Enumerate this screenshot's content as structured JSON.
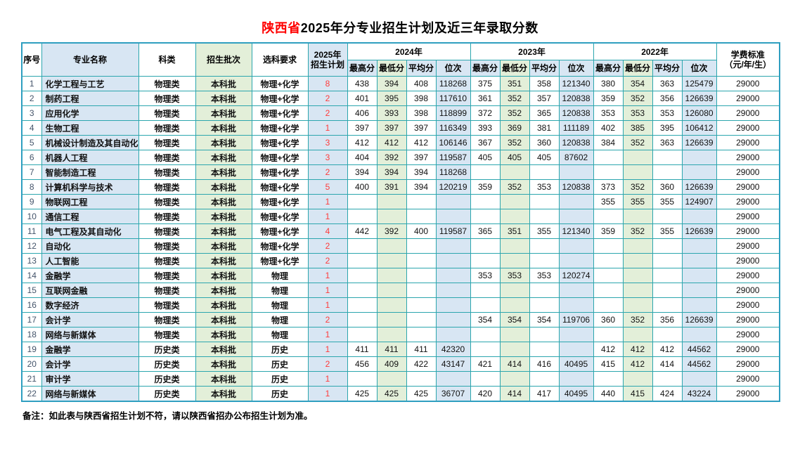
{
  "title": {
    "province": "陕西省",
    "rest": "2025年分专业招生计划及近三年录取分数"
  },
  "table": {
    "headers": {
      "no": "序号",
      "major": "专业名称",
      "kelei": "科类",
      "batch": "招生批次",
      "req": "选科要求",
      "plan_line1": "2025年",
      "plan_line2": "招生计划",
      "years": [
        "2024年",
        "2023年",
        "2022年"
      ],
      "score_cols": [
        "最高分",
        "最低分",
        "平均分",
        "位次"
      ],
      "tuition_line1": "学费标准",
      "tuition_line2": "（元/年/生）"
    },
    "rows": [
      {
        "no": "1",
        "major": "化学工程与工艺",
        "kelei": "物理类",
        "batch": "本科批",
        "req": "物理+化学",
        "plan": "8",
        "s2024": [
          "438",
          "394",
          "408",
          "118268"
        ],
        "s2023": [
          "375",
          "351",
          "358",
          "121340"
        ],
        "s2022": [
          "380",
          "354",
          "363",
          "125479"
        ],
        "tuition": "29000"
      },
      {
        "no": "2",
        "major": "制药工程",
        "kelei": "物理类",
        "batch": "本科批",
        "req": "物理+化学",
        "plan": "2",
        "s2024": [
          "401",
          "395",
          "398",
          "117610"
        ],
        "s2023": [
          "361",
          "352",
          "357",
          "120838"
        ],
        "s2022": [
          "359",
          "352",
          "356",
          "126639"
        ],
        "tuition": "29000"
      },
      {
        "no": "3",
        "major": "应用化学",
        "kelei": "物理类",
        "batch": "本科批",
        "req": "物理+化学",
        "plan": "2",
        "s2024": [
          "406",
          "393",
          "398",
          "118899"
        ],
        "s2023": [
          "372",
          "352",
          "365",
          "120838"
        ],
        "s2022": [
          "353",
          "353",
          "353",
          "126080"
        ],
        "tuition": "29000"
      },
      {
        "no": "4",
        "major": "生物工程",
        "kelei": "物理类",
        "batch": "本科批",
        "req": "物理+化学",
        "plan": "1",
        "s2024": [
          "397",
          "397",
          "397",
          "116349"
        ],
        "s2023": [
          "393",
          "369",
          "381",
          "111189"
        ],
        "s2022": [
          "402",
          "385",
          "395",
          "106412"
        ],
        "tuition": "29000"
      },
      {
        "no": "5",
        "major": "机械设计制造及其自动化",
        "kelei": "物理类",
        "batch": "本科批",
        "req": "物理+化学",
        "plan": "3",
        "s2024": [
          "412",
          "412",
          "412",
          "106146"
        ],
        "s2023": [
          "367",
          "352",
          "360",
          "120838"
        ],
        "s2022": [
          "384",
          "352",
          "363",
          "126639"
        ],
        "tuition": "29000"
      },
      {
        "no": "6",
        "major": "机器人工程",
        "kelei": "物理类",
        "batch": "本科批",
        "req": "物理+化学",
        "plan": "3",
        "s2024": [
          "404",
          "392",
          "397",
          "119587"
        ],
        "s2023": [
          "405",
          "405",
          "405",
          "87602"
        ],
        "s2022": [
          "",
          "",
          "",
          ""
        ],
        "tuition": "29000"
      },
      {
        "no": "7",
        "major": "智能制造工程",
        "kelei": "物理类",
        "batch": "本科批",
        "req": "物理+化学",
        "plan": "2",
        "s2024": [
          "394",
          "394",
          "394",
          "118268"
        ],
        "s2023": [
          "",
          "",
          "",
          ""
        ],
        "s2022": [
          "",
          "",
          "",
          ""
        ],
        "tuition": "29000"
      },
      {
        "no": "8",
        "major": "计算机科学与技术",
        "kelei": "物理类",
        "batch": "本科批",
        "req": "物理+化学",
        "plan": "5",
        "s2024": [
          "400",
          "391",
          "394",
          "120219"
        ],
        "s2023": [
          "359",
          "352",
          "353",
          "120838"
        ],
        "s2022": [
          "373",
          "352",
          "360",
          "126639"
        ],
        "tuition": "29000"
      },
      {
        "no": "9",
        "major": "物联网工程",
        "kelei": "物理类",
        "batch": "本科批",
        "req": "物理+化学",
        "plan": "1",
        "s2024": [
          "",
          "",
          "",
          ""
        ],
        "s2023": [
          "",
          "",
          "",
          ""
        ],
        "s2022": [
          "355",
          "355",
          "355",
          "124907"
        ],
        "tuition": "29000"
      },
      {
        "no": "10",
        "major": "通信工程",
        "kelei": "物理类",
        "batch": "本科批",
        "req": "物理+化学",
        "plan": "1",
        "s2024": [
          "",
          "",
          "",
          ""
        ],
        "s2023": [
          "",
          "",
          "",
          ""
        ],
        "s2022": [
          "",
          "",
          "",
          ""
        ],
        "tuition": "29000"
      },
      {
        "no": "11",
        "major": "电气工程及其自动化",
        "kelei": "物理类",
        "batch": "本科批",
        "req": "物理+化学",
        "plan": "4",
        "s2024": [
          "442",
          "392",
          "400",
          "119587"
        ],
        "s2023": [
          "365",
          "351",
          "355",
          "121340"
        ],
        "s2022": [
          "359",
          "352",
          "355",
          "126639"
        ],
        "tuition": "29000"
      },
      {
        "no": "12",
        "major": "自动化",
        "kelei": "物理类",
        "batch": "本科批",
        "req": "物理+化学",
        "plan": "2",
        "s2024": [
          "",
          "",
          "",
          ""
        ],
        "s2023": [
          "",
          "",
          "",
          ""
        ],
        "s2022": [
          "",
          "",
          "",
          ""
        ],
        "tuition": "29000"
      },
      {
        "no": "13",
        "major": "人工智能",
        "kelei": "物理类",
        "batch": "本科批",
        "req": "物理+化学",
        "plan": "2",
        "s2024": [
          "",
          "",
          "",
          ""
        ],
        "s2023": [
          "",
          "",
          "",
          ""
        ],
        "s2022": [
          "",
          "",
          "",
          ""
        ],
        "tuition": "29000"
      },
      {
        "no": "14",
        "major": "金融学",
        "kelei": "物理类",
        "batch": "本科批",
        "req": "物理",
        "plan": "1",
        "s2024": [
          "",
          "",
          "",
          ""
        ],
        "s2023": [
          "353",
          "353",
          "353",
          "120274"
        ],
        "s2022": [
          "",
          "",
          "",
          ""
        ],
        "tuition": "29000"
      },
      {
        "no": "15",
        "major": "互联网金融",
        "kelei": "物理类",
        "batch": "本科批",
        "req": "物理",
        "plan": "1",
        "s2024": [
          "",
          "",
          "",
          ""
        ],
        "s2023": [
          "",
          "",
          "",
          ""
        ],
        "s2022": [
          "",
          "",
          "",
          ""
        ],
        "tuition": "29000"
      },
      {
        "no": "16",
        "major": "数字经济",
        "kelei": "物理类",
        "batch": "本科批",
        "req": "物理",
        "plan": "1",
        "s2024": [
          "",
          "",
          "",
          ""
        ],
        "s2023": [
          "",
          "",
          "",
          ""
        ],
        "s2022": [
          "",
          "",
          "",
          ""
        ],
        "tuition": "29000"
      },
      {
        "no": "17",
        "major": "会计学",
        "kelei": "物理类",
        "batch": "本科批",
        "req": "物理",
        "plan": "2",
        "s2024": [
          "",
          "",
          "",
          ""
        ],
        "s2023": [
          "354",
          "354",
          "354",
          "119706"
        ],
        "s2022": [
          "360",
          "352",
          "356",
          "126639"
        ],
        "tuition": "29000"
      },
      {
        "no": "18",
        "major": "网络与新媒体",
        "kelei": "物理类",
        "batch": "本科批",
        "req": "物理",
        "plan": "1",
        "s2024": [
          "",
          "",
          "",
          ""
        ],
        "s2023": [
          "",
          "",
          "",
          ""
        ],
        "s2022": [
          "",
          "",
          "",
          ""
        ],
        "tuition": "29000"
      },
      {
        "no": "19",
        "major": "金融学",
        "kelei": "历史类",
        "batch": "本科批",
        "req": "历史",
        "plan": "1",
        "s2024": [
          "411",
          "411",
          "411",
          "42320"
        ],
        "s2023": [
          "",
          "",
          "",
          ""
        ],
        "s2022": [
          "412",
          "412",
          "412",
          "44562"
        ],
        "tuition": "29000"
      },
      {
        "no": "20",
        "major": "会计学",
        "kelei": "历史类",
        "batch": "本科批",
        "req": "历史",
        "plan": "2",
        "s2024": [
          "456",
          "409",
          "422",
          "43147"
        ],
        "s2023": [
          "421",
          "414",
          "416",
          "40495"
        ],
        "s2022": [
          "415",
          "412",
          "414",
          "44562"
        ],
        "tuition": "29000"
      },
      {
        "no": "21",
        "major": "审计学",
        "kelei": "历史类",
        "batch": "本科批",
        "req": "历史",
        "plan": "1",
        "s2024": [
          "",
          "",
          "",
          ""
        ],
        "s2023": [
          "",
          "",
          "",
          ""
        ],
        "s2022": [
          "",
          "",
          "",
          ""
        ],
        "tuition": "29000"
      },
      {
        "no": "22",
        "major": "网络与新媒体",
        "kelei": "历史类",
        "batch": "本科批",
        "req": "历史",
        "plan": "1",
        "s2024": [
          "425",
          "425",
          "425",
          "36707"
        ],
        "s2023": [
          "420",
          "414",
          "417",
          "40495"
        ],
        "s2022": [
          "440",
          "415",
          "424",
          "43224"
        ],
        "tuition": "29000"
      }
    ]
  },
  "footnote": "备注：如此表与陕西省招生计划不符，请以陕西省招办公布招生计划为准。",
  "colors": {
    "grid_border": "#2ca6ae",
    "outer_border": "#2f9fc0",
    "light_blue": "#d8e6f3",
    "light_green": "#e3efd9",
    "title_highlight": "#ff0000",
    "plan_text": "#ff3b3b",
    "row_no_text": "#44546a"
  }
}
